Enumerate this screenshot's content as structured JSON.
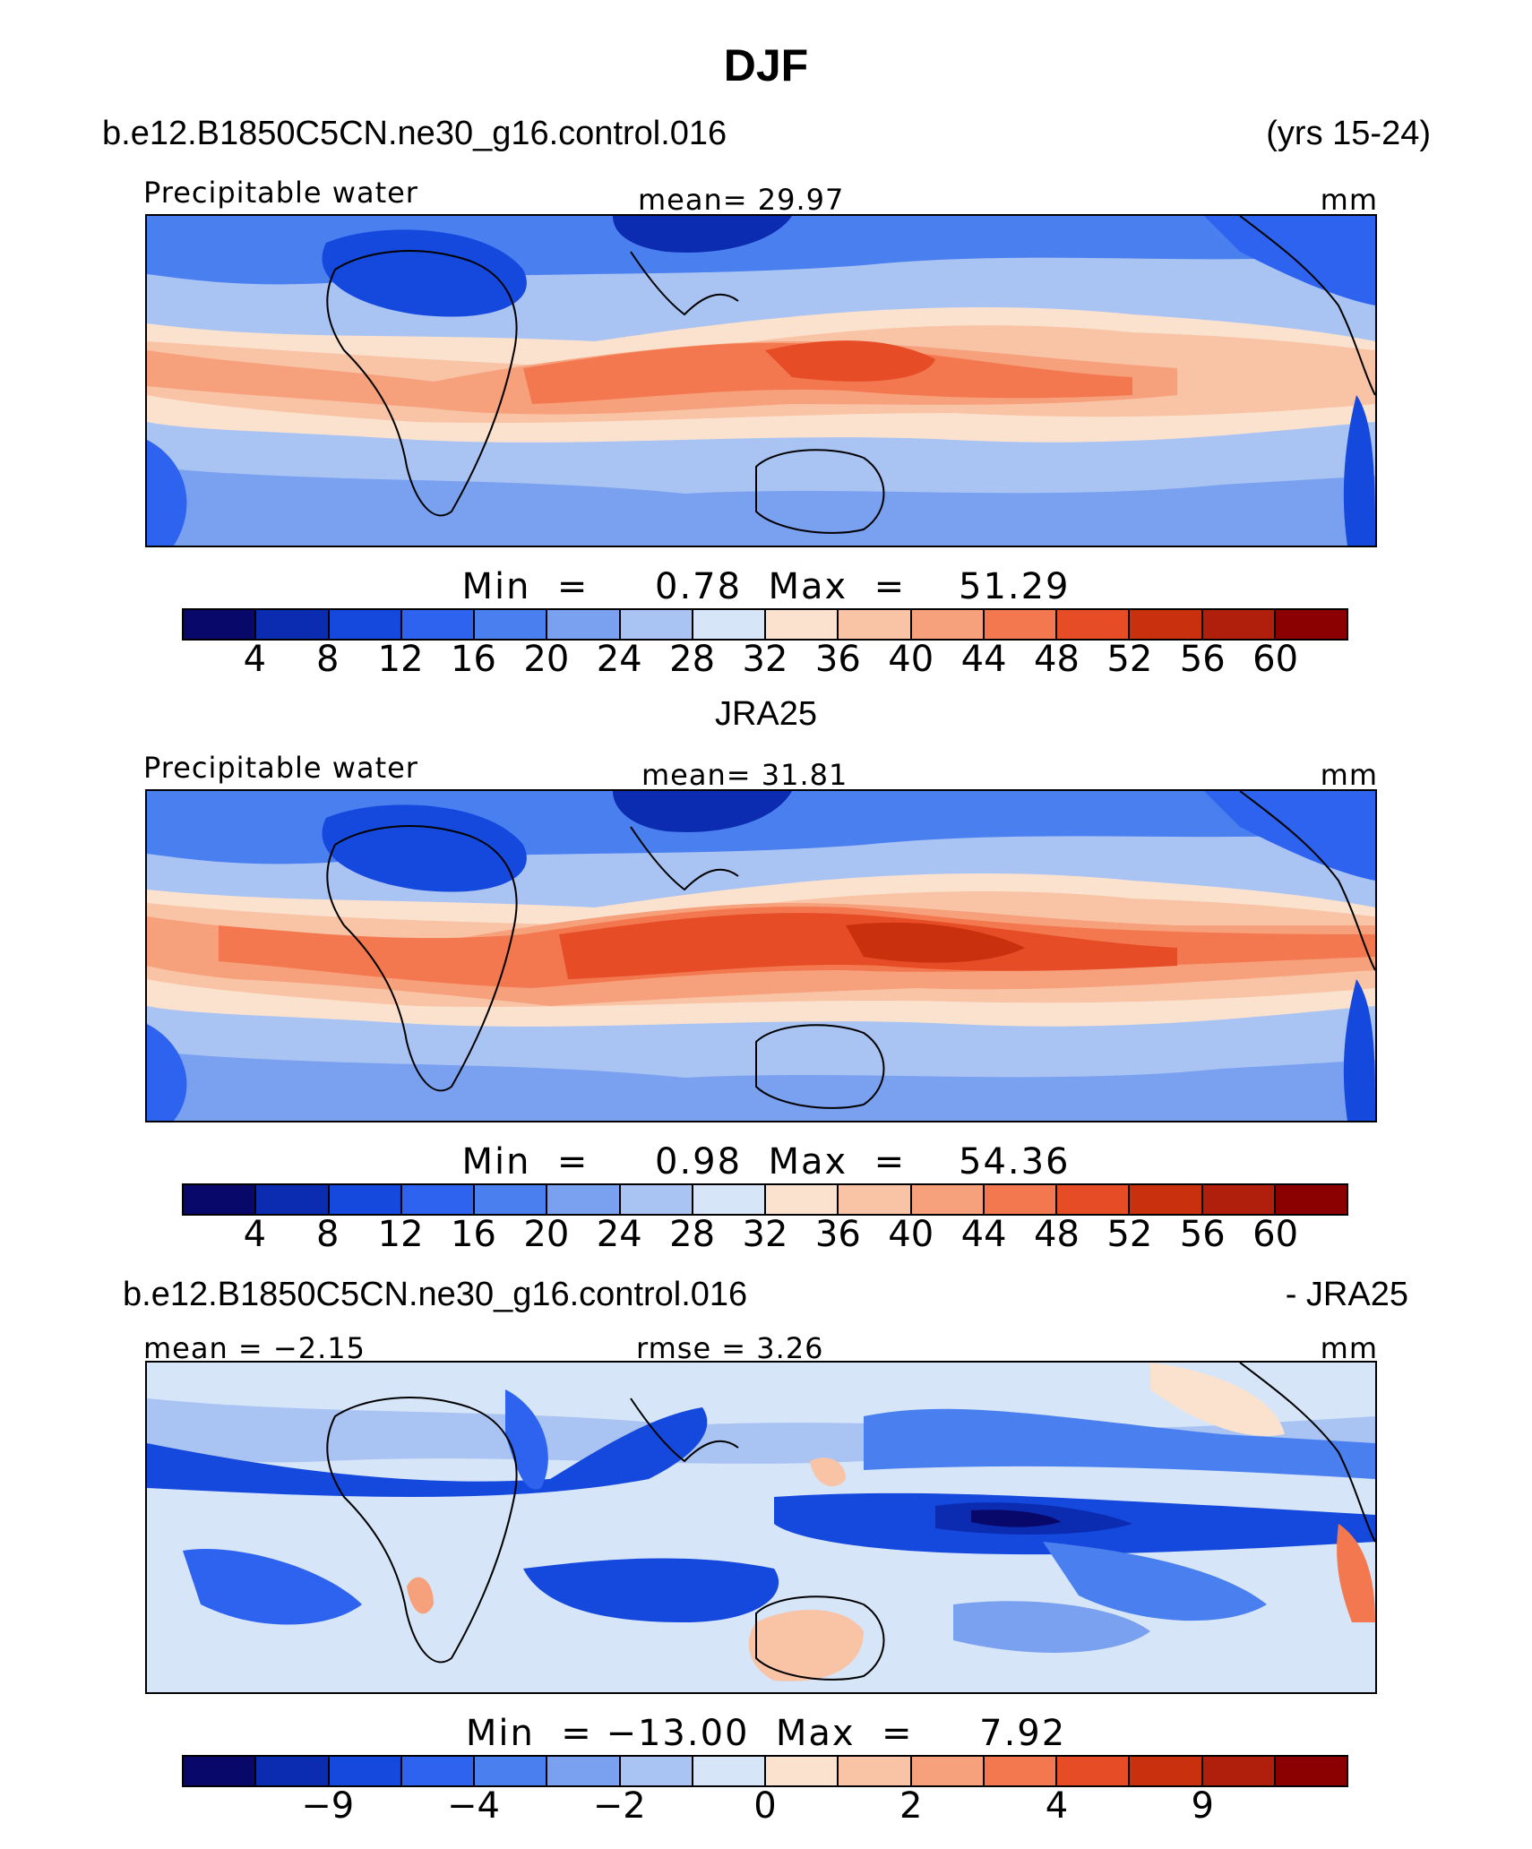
{
  "title": "DJF",
  "panel1": {
    "case_name": "b.e12.B1850C5CN.ne30_g16.control.016",
    "years": "(yrs 15-24)",
    "variable": "Precipitable water",
    "mean_label": "mean=   29.97",
    "units": "mm",
    "min_max": "Min  =     0.78  Max  =    51.29"
  },
  "panel2": {
    "header": "JRA25",
    "variable": "Precipitable water",
    "mean_label": "mean=   31.81",
    "units": "mm",
    "min_max": "Min  =     0.98  Max  =    54.36"
  },
  "panel3": {
    "case_name": "b.e12.B1850C5CN.ne30_g16.control.016",
    "minus_label": "- JRA25",
    "mean_label": "mean =  −2.15",
    "rmse_label": "rmse =     3.26",
    "units": "mm",
    "min_max": "Min  = −13.00  Max  =     7.92"
  },
  "chart_data": [
    {
      "type": "heatmap",
      "title": "Precipitable water",
      "units": "mm",
      "mean": 29.97,
      "min": 0.78,
      "max": 51.29,
      "contour_levels": [
        4,
        8,
        12,
        16,
        20,
        24,
        28,
        32,
        36,
        40,
        44,
        48,
        52,
        56,
        60
      ],
      "colorbar_ticks": [
        "4",
        "8",
        "12",
        "16",
        "20",
        "24",
        "28",
        "32",
        "36",
        "40",
        "44",
        "48",
        "52",
        "56",
        "60"
      ]
    },
    {
      "type": "heatmap",
      "title": "Precipitable water",
      "units": "mm",
      "mean": 31.81,
      "min": 0.98,
      "max": 54.36,
      "contour_levels": [
        4,
        8,
        12,
        16,
        20,
        24,
        28,
        32,
        36,
        40,
        44,
        48,
        52,
        56,
        60
      ],
      "colorbar_ticks": [
        "4",
        "8",
        "12",
        "16",
        "20",
        "24",
        "28",
        "32",
        "36",
        "40",
        "44",
        "48",
        "52",
        "56",
        "60"
      ]
    },
    {
      "type": "heatmap",
      "units": "mm",
      "mean": -2.15,
      "rmse": 3.26,
      "min": -13.0,
      "max": 7.92,
      "contour_levels": [
        -9,
        -6,
        -4,
        -3,
        -2,
        -1,
        0,
        1,
        2,
        3,
        4,
        6,
        9
      ],
      "colorbar_ticks": [
        "−9",
        "−4",
        "−2",
        "0",
        "2",
        "4",
        "9"
      ]
    }
  ],
  "colors": {
    "colormap": [
      "#08086b",
      "#0b2bb0",
      "#1548dd",
      "#2e63f0",
      "#4a7ff0",
      "#7aa0f0",
      "#a9c3f3",
      "#d6e6f8",
      "#fbe2cf",
      "#f9c3a6",
      "#f6a07c",
      "#f3784f",
      "#e64c25",
      "#c8300e",
      "#b01f0c",
      "#8b0000"
    ]
  }
}
